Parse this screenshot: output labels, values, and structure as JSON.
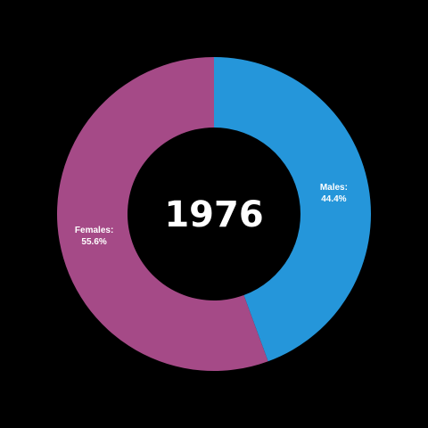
{
  "chart_data": {
    "type": "pie",
    "variant": "donut",
    "center_text": "1976",
    "slices": [
      {
        "label": "Males:",
        "value": 44.4,
        "value_text": "44.4%",
        "color": "#2596DA"
      },
      {
        "label": "Females:",
        "value": 55.6,
        "value_text": "55.6%",
        "color": "#A54A87"
      }
    ],
    "start_angle": "top (12 o'clock)",
    "direction": "clockwise",
    "background": "#000000"
  }
}
